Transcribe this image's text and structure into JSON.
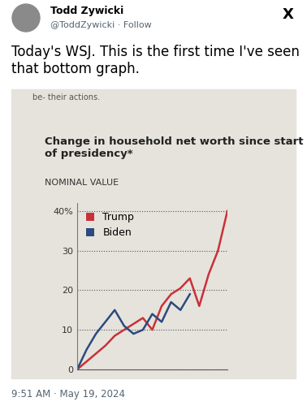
{
  "post": {
    "author": "Todd Zywicki",
    "handle": "@ToddZywicki · Follow",
    "platform": "X",
    "text": "Today's WSJ. This is the first time I've seen that bottom graph.",
    "timestamp": "9:51 AM · May 19, 2024",
    "clipped_text": "be- their actions."
  },
  "chart_data": {
    "type": "line",
    "title": "Change in household net worth since start of presidency*",
    "subtitle": "NOMINAL VALUE",
    "x": [
      0,
      1,
      2,
      3,
      4,
      5,
      6,
      7,
      8,
      9,
      10,
      11,
      12,
      13,
      14,
      15,
      16
    ],
    "series": [
      {
        "name": "Trump",
        "color": "#c8313a",
        "values": [
          0,
          2,
          4,
          6,
          8.5,
          10,
          11.5,
          13,
          10,
          16,
          19,
          20.5,
          23,
          16,
          24,
          30,
          40
        ]
      },
      {
        "name": "Biden",
        "color": "#2b4a7e",
        "values": [
          0,
          5,
          9,
          12,
          15,
          11,
          9,
          10,
          14,
          12,
          17,
          15,
          19,
          null,
          null,
          null,
          null
        ]
      }
    ],
    "xlim": [
      0,
      16
    ],
    "xticks": [],
    "ylim": [
      0,
      42
    ],
    "yticks": [
      0,
      10,
      20,
      30,
      {
        "value": 40,
        "label": "40%"
      }
    ],
    "grid": true,
    "legend": "upper left",
    "tick_labels": "y"
  }
}
